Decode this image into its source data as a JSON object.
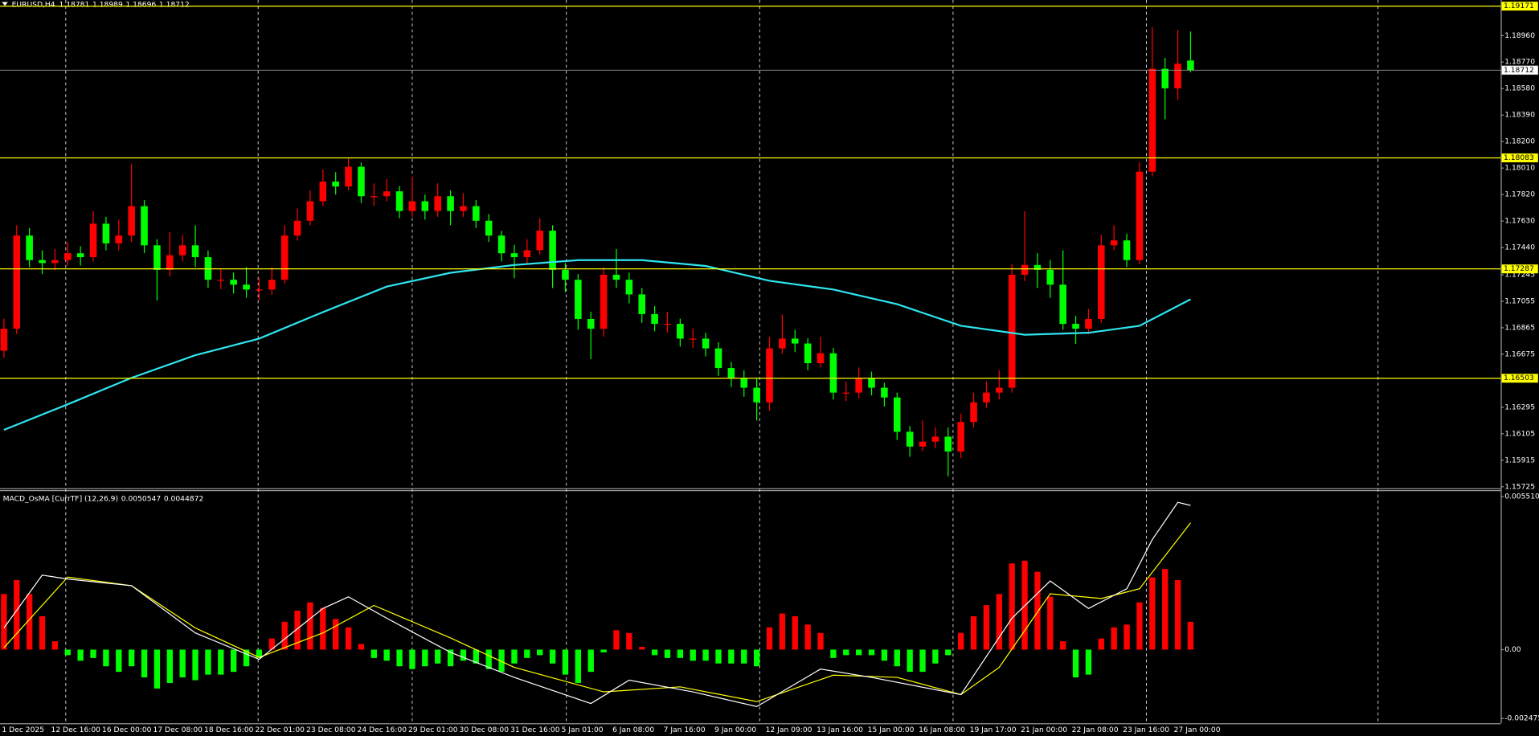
{
  "header": {
    "symbol": "EURUSD,H4",
    "ohlc": [
      1.18781,
      1.18989,
      1.18696,
      1.18712
    ]
  },
  "chart_data": [
    {
      "type": "candlestick",
      "ylim": [
        1.15718,
        1.19215
      ],
      "yticks": [
        {
          "value": 1.1896,
          "label": "1.18960"
        },
        {
          "value": 1.1877,
          "label": "1.18770"
        },
        {
          "value": 1.1858,
          "label": "1.18580"
        },
        {
          "value": 1.1839,
          "label": "1.18390"
        },
        {
          "value": 1.182,
          "label": "1.18200"
        },
        {
          "value": 1.1801,
          "label": "1.18010"
        },
        {
          "value": 1.1782,
          "label": "1.17820"
        },
        {
          "value": 1.1763,
          "label": "1.17630"
        },
        {
          "value": 1.1744,
          "label": "1.17440"
        },
        1.17245,
        1.17055,
        1.16865,
        1.16675,
        1.16295,
        1.16105,
        1.15915,
        1.15725
      ],
      "levels": [
        1.19171,
        1.18083,
        1.17287,
        1.16503
      ],
      "level_color": "#ffff00",
      "last_price": 1.18712,
      "bull_color": "#ff0000",
      "bear_color": "#00ff00",
      "ohlc": [
        [
          1.167,
          1.1693,
          1.1665,
          1.16858
        ],
        [
          1.16858,
          1.176,
          1.1682,
          1.17526
        ],
        [
          1.17526,
          1.1758,
          1.173,
          1.1735
        ],
        [
          1.1735,
          1.1742,
          1.1725,
          1.17329
        ],
        [
          1.17329,
          1.1743,
          1.1728,
          1.1735
        ],
        [
          1.1735,
          1.1748,
          1.1731,
          1.17399
        ],
        [
          1.17399,
          1.1745,
          1.1731,
          1.17371
        ],
        [
          1.17371,
          1.177,
          1.1734,
          1.17611
        ],
        [
          1.17611,
          1.1766,
          1.1742,
          1.1747
        ],
        [
          1.1747,
          1.1764,
          1.1742,
          1.17526
        ],
        [
          1.17526,
          1.1804,
          1.1748,
          1.17737
        ],
        [
          1.17737,
          1.1778,
          1.174,
          1.17456
        ],
        [
          1.17456,
          1.175,
          1.1706,
          1.1728
        ],
        [
          1.1728,
          1.1755,
          1.1723,
          1.17385
        ],
        [
          1.17385,
          1.1753,
          1.1734,
          1.17456
        ],
        [
          1.17456,
          1.176,
          1.173,
          1.17371
        ],
        [
          1.17371,
          1.1742,
          1.1715,
          1.17209
        ],
        [
          1.17209,
          1.1729,
          1.1714,
          1.17209
        ],
        [
          1.17209,
          1.1726,
          1.1711,
          1.17174
        ],
        [
          1.17174,
          1.173,
          1.1708,
          1.17139
        ],
        [
          1.17139,
          1.1722,
          1.1706,
          1.17139
        ],
        [
          1.17139,
          1.173,
          1.171,
          1.17209
        ],
        [
          1.17209,
          1.176,
          1.1718,
          1.17526
        ],
        [
          1.17526,
          1.1772,
          1.1749,
          1.17632
        ],
        [
          1.17632,
          1.1785,
          1.176,
          1.17772
        ],
        [
          1.17772,
          1.18,
          1.1774,
          1.17913
        ],
        [
          1.17913,
          1.1798,
          1.1782,
          1.17878
        ],
        [
          1.17878,
          1.1808,
          1.1785,
          1.18019
        ],
        [
          1.18019,
          1.1805,
          1.1776,
          1.17808
        ],
        [
          1.17808,
          1.179,
          1.1774,
          1.17808
        ],
        [
          1.17808,
          1.1793,
          1.1777,
          1.17843
        ],
        [
          1.17843,
          1.1788,
          1.1765,
          1.17702
        ],
        [
          1.17702,
          1.1795,
          1.1766,
          1.17772
        ],
        [
          1.17772,
          1.1782,
          1.1764,
          1.17702
        ],
        [
          1.17702,
          1.179,
          1.1766,
          1.17808
        ],
        [
          1.17808,
          1.1785,
          1.176,
          1.17702
        ],
        [
          1.17702,
          1.1783,
          1.1766,
          1.17737
        ],
        [
          1.17737,
          1.1778,
          1.1758,
          1.17632
        ],
        [
          1.17632,
          1.1768,
          1.1748,
          1.17526
        ],
        [
          1.17526,
          1.1756,
          1.1734,
          1.17399
        ],
        [
          1.17399,
          1.1746,
          1.1722,
          1.17371
        ],
        [
          1.17371,
          1.175,
          1.1732,
          1.17421
        ],
        [
          1.17421,
          1.1765,
          1.1739,
          1.17561
        ],
        [
          1.17561,
          1.176,
          1.1715,
          1.1728
        ],
        [
          1.1728,
          1.1733,
          1.1712,
          1.17209
        ],
        [
          1.17209,
          1.1725,
          1.1685,
          1.16928
        ],
        [
          1.16928,
          1.1698,
          1.1664,
          1.16858
        ],
        [
          1.16858,
          1.173,
          1.168,
          1.17245
        ],
        [
          1.17245,
          1.1743,
          1.1715,
          1.17209
        ],
        [
          1.17209,
          1.1726,
          1.1704,
          1.17104
        ],
        [
          1.17104,
          1.1715,
          1.169,
          1.16963
        ],
        [
          1.16963,
          1.1702,
          1.1684,
          1.16893
        ],
        [
          1.16893,
          1.1698,
          1.1683,
          1.16893
        ],
        [
          1.16893,
          1.1693,
          1.1673,
          1.16787
        ],
        [
          1.16787,
          1.1686,
          1.1672,
          1.16787
        ],
        [
          1.16787,
          1.1683,
          1.1666,
          1.16717
        ],
        [
          1.16717,
          1.1676,
          1.1652,
          1.16576
        ],
        [
          1.16576,
          1.1662,
          1.1644,
          1.16506
        ],
        [
          1.16506,
          1.1656,
          1.1637,
          1.16435
        ],
        [
          1.16435,
          1.165,
          1.162,
          1.1633
        ],
        [
          1.1633,
          1.168,
          1.1627,
          1.16717
        ],
        [
          1.16717,
          1.1696,
          1.1668,
          1.16787
        ],
        [
          1.16787,
          1.1685,
          1.1669,
          1.16752
        ],
        [
          1.16752,
          1.1679,
          1.1656,
          1.16611
        ],
        [
          1.16611,
          1.168,
          1.1658,
          1.16682
        ],
        [
          1.16682,
          1.1672,
          1.1635,
          1.164
        ],
        [
          1.164,
          1.1648,
          1.1634,
          1.164
        ],
        [
          1.164,
          1.1658,
          1.1636,
          1.16506
        ],
        [
          1.16506,
          1.1655,
          1.1638,
          1.16435
        ],
        [
          1.16435,
          1.1647,
          1.163,
          1.16365
        ],
        [
          1.16365,
          1.164,
          1.1606,
          1.16119
        ],
        [
          1.16119,
          1.1616,
          1.1594,
          1.16013
        ],
        [
          1.16013,
          1.162,
          1.1598,
          1.16048
        ],
        [
          1.16048,
          1.1615,
          1.16,
          1.16084
        ],
        [
          1.16084,
          1.1615,
          1.158,
          1.15978
        ],
        [
          1.15978,
          1.1625,
          1.1593,
          1.16189
        ],
        [
          1.16189,
          1.164,
          1.1615,
          1.1633
        ],
        [
          1.1633,
          1.1648,
          1.1629,
          1.164
        ],
        [
          1.164,
          1.1656,
          1.1635,
          1.16435
        ],
        [
          1.16435,
          1.1732,
          1.164,
          1.17245
        ],
        [
          1.17245,
          1.177,
          1.172,
          1.17315
        ],
        [
          1.17315,
          1.174,
          1.1715,
          1.1728
        ],
        [
          1.1728,
          1.1735,
          1.1708,
          1.17174
        ],
        [
          1.17174,
          1.1742,
          1.1685,
          1.16893
        ],
        [
          1.16893,
          1.1695,
          1.1675,
          1.16858
        ],
        [
          1.16858,
          1.17,
          1.1682,
          1.16928
        ],
        [
          1.16928,
          1.1753,
          1.169,
          1.17456
        ],
        [
          1.17456,
          1.176,
          1.1742,
          1.17491
        ],
        [
          1.17491,
          1.1754,
          1.173,
          1.1735
        ],
        [
          1.1735,
          1.1805,
          1.1732,
          1.17984
        ],
        [
          1.17984,
          1.1902,
          1.1795,
          1.18722
        ],
        [
          1.18722,
          1.188,
          1.1836,
          1.18582
        ],
        [
          1.18582,
          1.19,
          1.185,
          1.18758
        ],
        [
          1.18781,
          1.18989,
          1.18696,
          1.18712
        ]
      ],
      "ma": {
        "color": "#2ee6f0",
        "x": [
          0,
          5,
          10,
          15,
          20,
          25,
          30,
          35,
          40,
          45,
          50,
          55,
          60,
          65,
          70,
          75,
          80,
          85,
          89,
          93
        ],
        "values": [
          1.16133,
          1.16316,
          1.16506,
          1.16668,
          1.16787,
          1.16977,
          1.1716,
          1.17259,
          1.17315,
          1.1735,
          1.1735,
          1.17308,
          1.17202,
          1.17139,
          1.17034,
          1.16879,
          1.16815,
          1.16829,
          1.16879,
          1.17069
        ]
      },
      "xlabels": [
        "1 Dec 2025",
        "12 Dec 16:00",
        "16 Dec 00:00",
        "17 Dec 08:00",
        "18 Dec 16:00",
        "22 Dec 01:00",
        "23 Dec 08:00",
        "24 Dec 16:00",
        "29 Dec 01:00",
        "30 Dec 08:00",
        "31 Dec 16:00",
        "5 Jan 01:00",
        "6 Jan 08:00",
        "7 Jan 16:00",
        "9 Jan 00:00",
        "12 Jan 09:00",
        "13 Jan 16:00",
        "15 Jan 00:00",
        "16 Jan 08:00",
        "19 Jan 17:00",
        "21 Jan 00:00",
        "22 Jan 08:00",
        "23 Jan 16:00",
        "27 Jan 00:00"
      ]
    },
    {
      "type": "macd",
      "title": "MACD_OsMA [CurrTF] (12,26,9)",
      "readout": [
        0.0050547,
        0.0044872
      ],
      "ylim": [
        -0.00265,
        0.00572
      ],
      "yticks": [
        0.0055103,
        {
          "value": 0,
          "label": "0.00"
        },
        -0.002475
      ],
      "histogram": {
        "pos_color": "#ff0000",
        "neg_color": "#00ff00",
        "values": [
          0.002,
          0.0025,
          0.002,
          0.0012,
          0.0003,
          -0.0002,
          -0.0004,
          -0.0003,
          -0.0006,
          -0.0008,
          -0.0006,
          -0.001,
          -0.0014,
          -0.0012,
          -0.001,
          -0.0011,
          -0.0009,
          -0.0009,
          -0.0008,
          -0.0006,
          -0.0003,
          0.0004,
          0.001,
          0.0014,
          0.0017,
          0.0015,
          0.0011,
          0.0008,
          0.0002,
          -0.0003,
          -0.0004,
          -0.0006,
          -0.0007,
          -0.0006,
          -0.0005,
          -0.0006,
          -0.0004,
          -0.0005,
          -0.0007,
          -0.0008,
          -0.0005,
          -0.0003,
          -0.0002,
          -0.0005,
          -0.0009,
          -0.0012,
          -0.0008,
          -0.0001,
          0.0007,
          0.0006,
          0.0001,
          -0.0002,
          -0.0003,
          -0.0003,
          -0.0004,
          -0.0004,
          -0.0005,
          -0.0005,
          -0.0005,
          -0.0006,
          0.0008,
          0.0013,
          0.0012,
          0.0009,
          0.0006,
          -0.0003,
          -0.0002,
          -0.0002,
          -0.0002,
          -0.0004,
          -0.0006,
          -0.0008,
          -0.0008,
          -0.0005,
          -0.0002,
          0.0006,
          0.0012,
          0.0016,
          0.002,
          0.0031,
          0.0032,
          0.0028,
          0.0019,
          0.0003,
          -0.001,
          -0.0009,
          0.0004,
          0.0008,
          0.0009,
          0.0017,
          0.0026,
          0.0029,
          0.0025,
          0.001
        ]
      },
      "macd": {
        "color": "#ffffff",
        "x": [
          0,
          3,
          5,
          10,
          15,
          20,
          25,
          27,
          30,
          35,
          40,
          46,
          49,
          54,
          59,
          64,
          68,
          75,
          79,
          82,
          85,
          88,
          90,
          92,
          93
        ],
        "values": [
          0.00078,
          0.00268,
          0.00254,
          0.0023,
          0.0006,
          -0.00035,
          0.00148,
          0.0019,
          0.00113,
          -0.0001,
          -0.001,
          -0.00194,
          -0.0011,
          -0.00152,
          -0.00205,
          -0.0007,
          -0.001,
          -0.00162,
          0.00113,
          0.00247,
          0.00148,
          0.00219,
          0.00396,
          0.0053,
          0.00519
        ]
      },
      "signal": {
        "color": "#ffff00",
        "x": [
          0,
          5,
          10,
          15,
          20,
          25,
          29,
          35,
          40,
          47,
          53,
          59,
          65,
          70,
          75,
          78,
          82,
          86,
          89,
          93
        ],
        "values": [
          7e-05,
          0.00261,
          0.0023,
          0.00078,
          -0.00028,
          0.0006,
          0.00159,
          0.00042,
          -0.00064,
          -0.00152,
          -0.00134,
          -0.00187,
          -0.00092,
          -0.001,
          -0.00162,
          -0.00064,
          0.00201,
          0.00184,
          0.00219,
          0.00456
        ]
      }
    }
  ]
}
